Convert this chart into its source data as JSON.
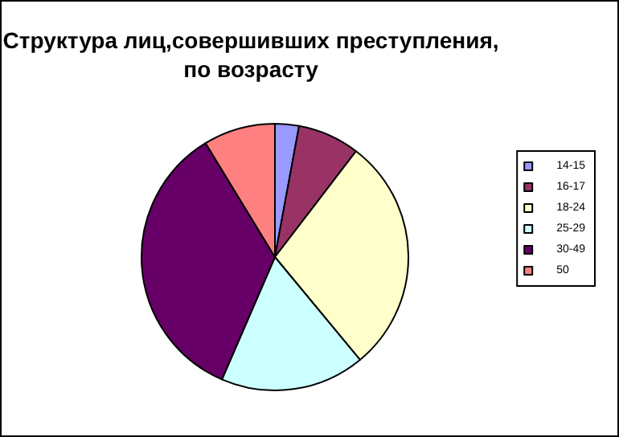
{
  "chart_data": {
    "type": "pie",
    "title": "Структура лиц,совершивших преступления,\nпо возрасту",
    "categories": [
      "14-15",
      "16-17",
      "18-24",
      "25-29",
      "30-49",
      "50"
    ],
    "values": [
      2.9,
      7.5,
      28.6,
      17.5,
      34.8,
      8.7
    ],
    "colors": [
      "#9999ff",
      "#993366",
      "#ffffcc",
      "#ccffff",
      "#660066",
      "#ff8080"
    ],
    "legend": "right"
  }
}
